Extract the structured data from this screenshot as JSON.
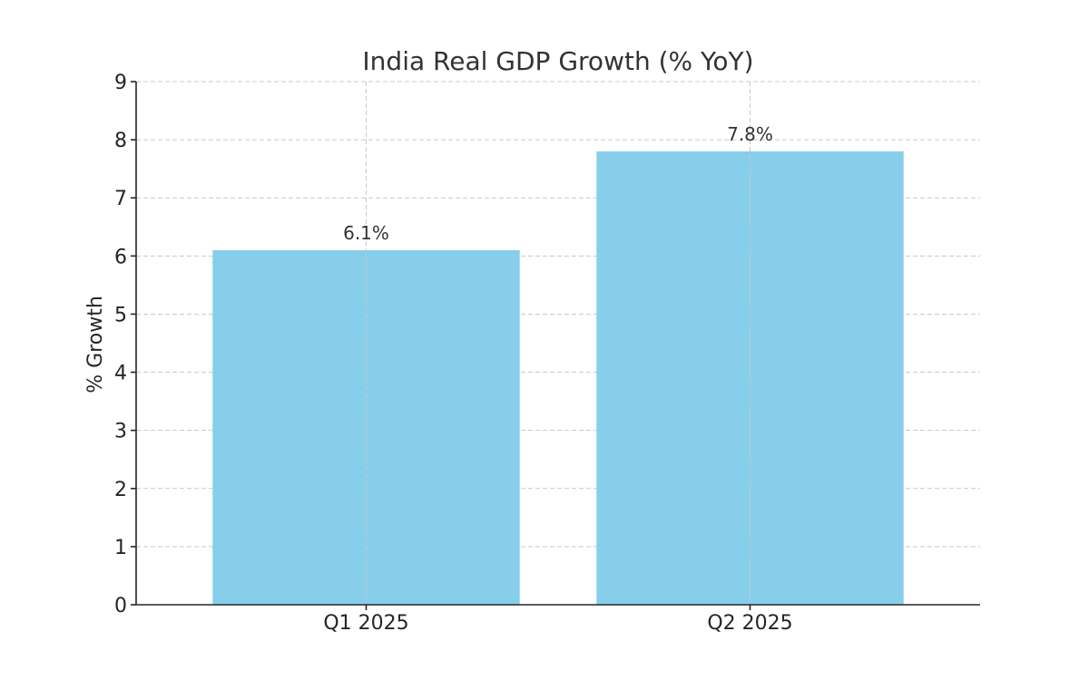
{
  "chart_data": {
    "type": "bar",
    "title": "India Real GDP Growth (% YoY)",
    "xlabel": "",
    "ylabel": "% Growth",
    "categories": [
      "Q1 2025",
      "Q2 2025"
    ],
    "values": [
      6.1,
      7.8
    ],
    "data_labels": [
      "6.1%",
      "7.8%"
    ],
    "ylim": [
      0,
      9
    ],
    "yticks": [
      0,
      1,
      2,
      3,
      4,
      5,
      6,
      7,
      8,
      9
    ],
    "grid": true,
    "bar_color": "#87ceeb"
  }
}
